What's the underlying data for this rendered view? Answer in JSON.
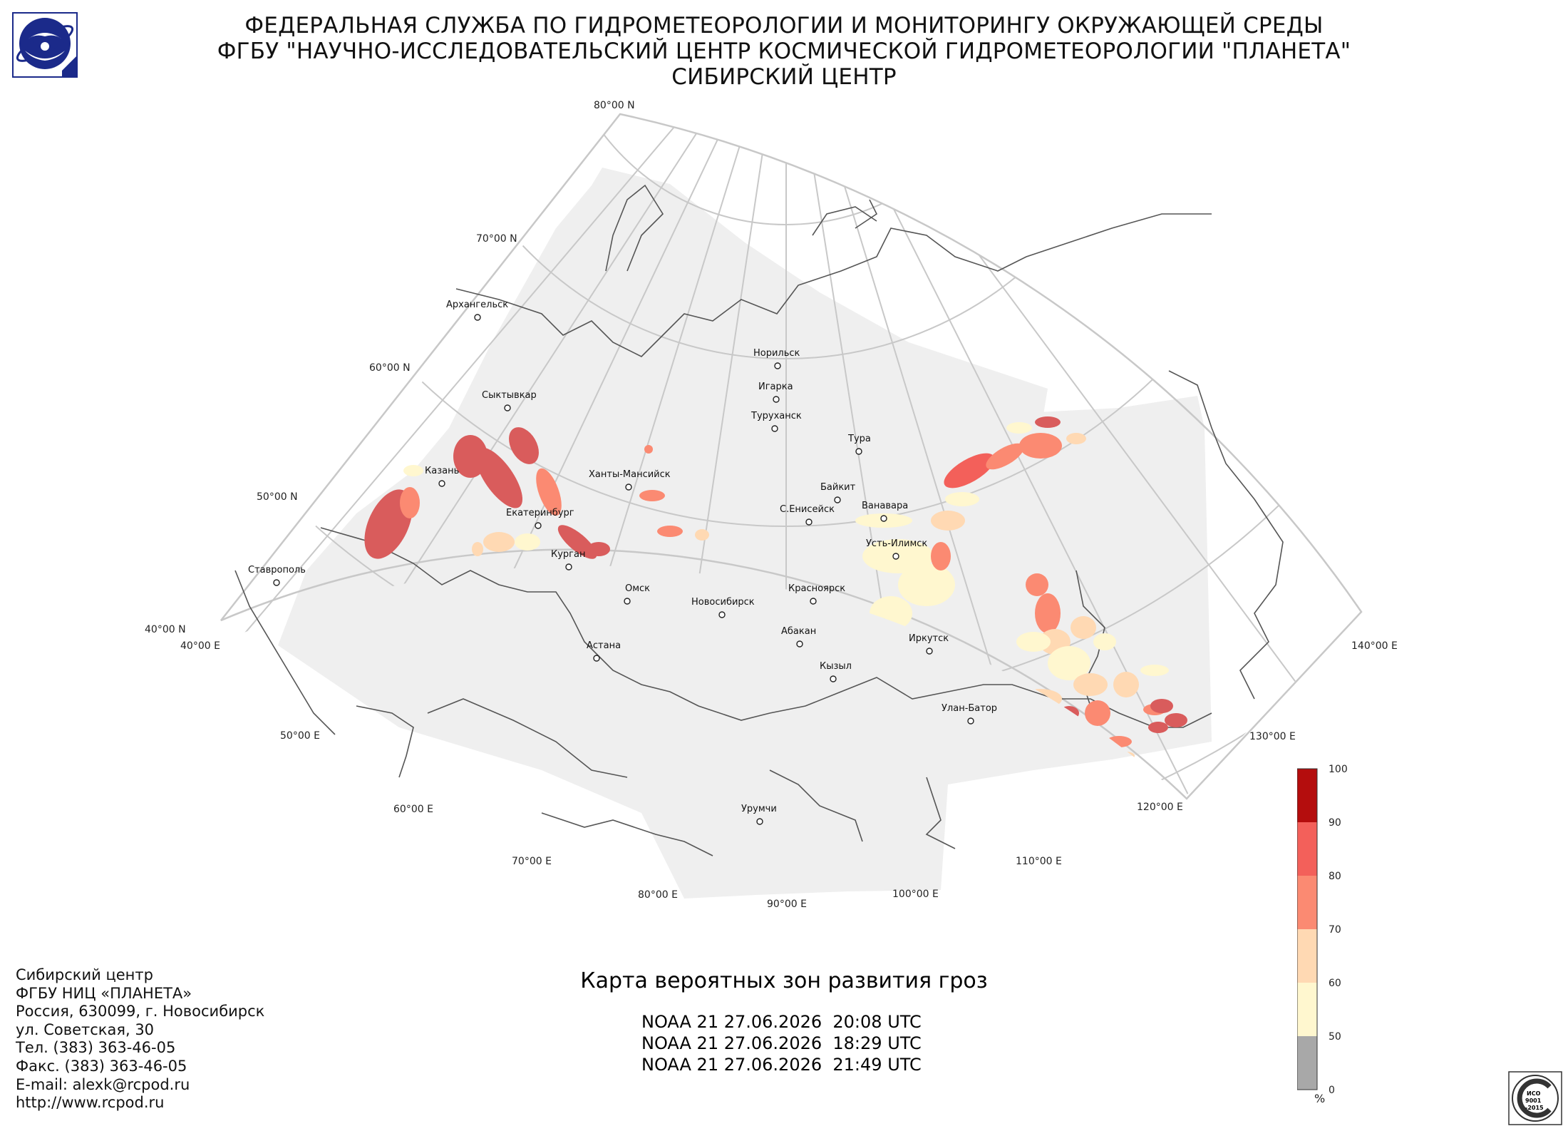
{
  "header": {
    "line1": "ФЕДЕРАЛЬНАЯ СЛУЖБА ПО ГИДРОМЕТЕОРОЛОГИИ И МОНИТОРИНГУ ОКРУЖАЮЩЕЙ СРЕДЫ",
    "line2": "ФГБУ \"НАУЧНО-ИССЛЕДОВАТЕЛЬСКИЙ ЦЕНТР КОСМИЧЕСКОЙ ГИДРОМЕТЕОРОЛОГИИ \"ПЛАНЕТА\"",
    "line3": "СИБИРСКИЙ ЦЕНТР"
  },
  "map": {
    "lat_labels": [
      "80°00 N",
      "70°00 N",
      "60°00 N",
      "50°00 N",
      "40°00 N"
    ],
    "lon_labels": [
      "40°00 E",
      "50°00 E",
      "60°00 E",
      "70°00 E",
      "80°00 E",
      "90°00 E",
      "100°00 E",
      "110°00 E",
      "120°00 E",
      "130°00 E",
      "140°00 E"
    ],
    "cities": [
      {
        "name": "Архангельск"
      },
      {
        "name": "Сыктывкар"
      },
      {
        "name": "Казань"
      },
      {
        "name": "Екатеринбург"
      },
      {
        "name": "Ставрополь"
      },
      {
        "name": "Курган"
      },
      {
        "name": "Ханты-Мансийск"
      },
      {
        "name": "Омск"
      },
      {
        "name": "Новосибирск"
      },
      {
        "name": "Астана"
      },
      {
        "name": "Норильск"
      },
      {
        "name": "Игарка"
      },
      {
        "name": "Туруханск"
      },
      {
        "name": "Тура"
      },
      {
        "name": "Байкит"
      },
      {
        "name": "Ванавара"
      },
      {
        "name": "С.Енисейск"
      },
      {
        "name": "Усть-Илимск"
      },
      {
        "name": "Красноярск"
      },
      {
        "name": "Абакан"
      },
      {
        "name": "Иркутск"
      },
      {
        "name": "Кызыл"
      },
      {
        "name": "Улан-Батор"
      },
      {
        "name": "Урумчи"
      }
    ]
  },
  "legend": {
    "ticks": [
      "100",
      "90",
      "80",
      "70",
      "60",
      "50",
      "0"
    ],
    "unit": "%",
    "colors": [
      "#b40d0d",
      "#f3605a",
      "#fb8a72",
      "#ffd9b3",
      "#fff7cf",
      "#a8a8a8"
    ]
  },
  "contact": {
    "lines": [
      "Сибирский центр",
      "ФГБУ НИЦ «ПЛАНЕТА»",
      "Россия, 630099, г. Новосибирск",
      "ул. Советская, 30",
      "Тел. (383) 363-46-05",
      "Факс. (383) 363-46-05",
      "E-mail: alexk@rcpod.ru",
      "http://www.rcpod.ru"
    ]
  },
  "caption": {
    "title": "Карта вероятных зон развития гроз",
    "passes": [
      "NOAA 21 27.06.2026  20:08 UTC",
      "NOAA 21 27.06.2026  18:29 UTC",
      "NOAA 21 27.06.2026  21:49 UTC"
    ]
  },
  "cert": {
    "ring_text": "РОССТАНДАРТ",
    "line1": "ИСО",
    "line2": "9001",
    "line3": "-2015"
  }
}
